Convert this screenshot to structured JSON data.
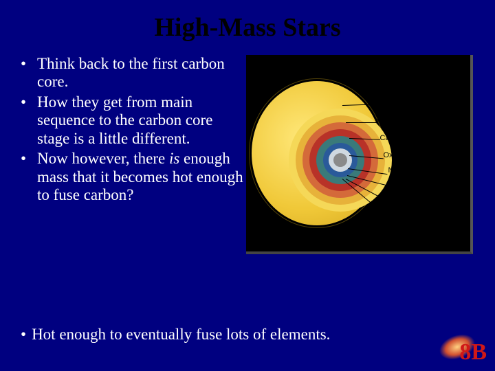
{
  "title": "High-Mass Stars",
  "bullets": [
    "Think back to the first carbon core.",
    "How they get from main sequence to the carbon core stage is a little different.",
    "Now however, there <i>is</i> enough mass that it becomes hot enough to fuse carbon?"
  ],
  "finalBullet": "Hot enough to eventually fuse lots of elements.",
  "diagram": {
    "background": "#000000",
    "starColor": "#f0c838",
    "shells": [
      {
        "name": "Nonburning hydrogen",
        "color": "#f5d858"
      },
      {
        "name": "Hydrogen fusion",
        "color": "#e7b23a"
      },
      {
        "name": "Helium fusion",
        "color": "#d46a3a"
      },
      {
        "name": "Carbon fusion",
        "color": "#b83228"
      },
      {
        "name": "Oxygen fusion",
        "color": "#3a7a7a"
      },
      {
        "name": "Neon fusion",
        "color": "#2a5a9a"
      },
      {
        "name": "Magnesium fusion",
        "color": "#cfd8e0"
      },
      {
        "name": "Silicon fusion",
        "color": "#cfd8e0"
      },
      {
        "name": "Iron ash",
        "color": "#8a8a8a"
      }
    ]
  },
  "corner": {
    "text": "8B",
    "color": "#d01818"
  },
  "colors": {
    "slideBackground": "#000080",
    "titleColor": "#000000",
    "bodyText": "#ffffff"
  },
  "typography": {
    "titleFont": "Times New Roman",
    "titleSize": 38,
    "titleWeight": "bold",
    "bodyFont": "Times New Roman",
    "bodySize": 23,
    "labelFont": "Arial",
    "labelSize": 11
  }
}
